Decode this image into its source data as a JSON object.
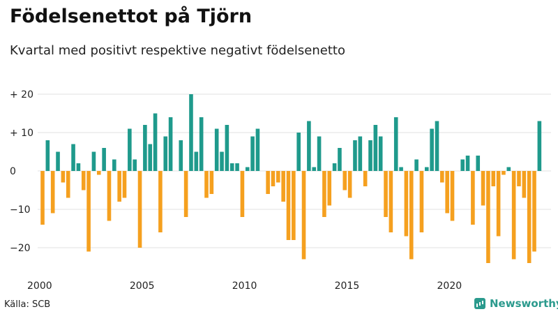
{
  "header": {
    "title": "Födelsenettot på Tjörn",
    "subtitle": "Kvartal med positivt respektive negativt födelsenetto"
  },
  "footer": {
    "source": "Källa: SCB",
    "brand": "Newsworthy"
  },
  "colors": {
    "positive": "#1f9a8c",
    "negative": "#f5a01f",
    "grid": "#e0e0e0",
    "brand": "#2b9a8d"
  },
  "chart_data": {
    "type": "bar",
    "title": "Födelsenettot på Tjörn",
    "subtitle": "Kvartal med positivt respektive negativt födelsenetto",
    "xlabel": "",
    "ylabel": "",
    "ylim": [
      -25,
      20
    ],
    "grid": true,
    "y_ticks": [
      {
        "value": 20,
        "label": "+ 20"
      },
      {
        "value": 10,
        "label": "+ 10"
      },
      {
        "value": 0,
        "label": "0"
      },
      {
        "value": -10,
        "label": "−10"
      },
      {
        "value": -20,
        "label": "−20"
      }
    ],
    "x_ticks": [
      {
        "year": 2000,
        "label": "2000"
      },
      {
        "year": 2005,
        "label": "2005"
      },
      {
        "year": 2010,
        "label": "2010"
      },
      {
        "year": 2015,
        "label": "2015"
      },
      {
        "year": 2020,
        "label": "2020"
      }
    ],
    "start_year": 2000,
    "start_quarter": 1,
    "values": [
      -14,
      8,
      -11,
      5,
      -3,
      -7,
      7,
      2,
      -5,
      -21,
      5,
      -1,
      6,
      -13,
      3,
      -8,
      -7,
      11,
      3,
      -20,
      12,
      7,
      15,
      -16,
      9,
      14,
      0,
      8,
      -12,
      20,
      5,
      14,
      -7,
      -6,
      11,
      5,
      12,
      2,
      2,
      -12,
      1,
      9,
      11,
      0,
      -6,
      -4,
      -3,
      -8,
      -18,
      -18,
      10,
      -23,
      13,
      1,
      9,
      -12,
      -9,
      2,
      6,
      -5,
      -7,
      8,
      9,
      -4,
      8,
      12,
      9,
      -12,
      -16,
      14,
      1,
      -17,
      -23,
      3,
      -16,
      1,
      11,
      13,
      -3,
      -11,
      -13,
      0,
      3,
      4,
      -14,
      4,
      -9,
      -24,
      -4,
      -17,
      -1,
      1,
      -23,
      -4,
      -7,
      -24,
      -21,
      13
    ]
  }
}
